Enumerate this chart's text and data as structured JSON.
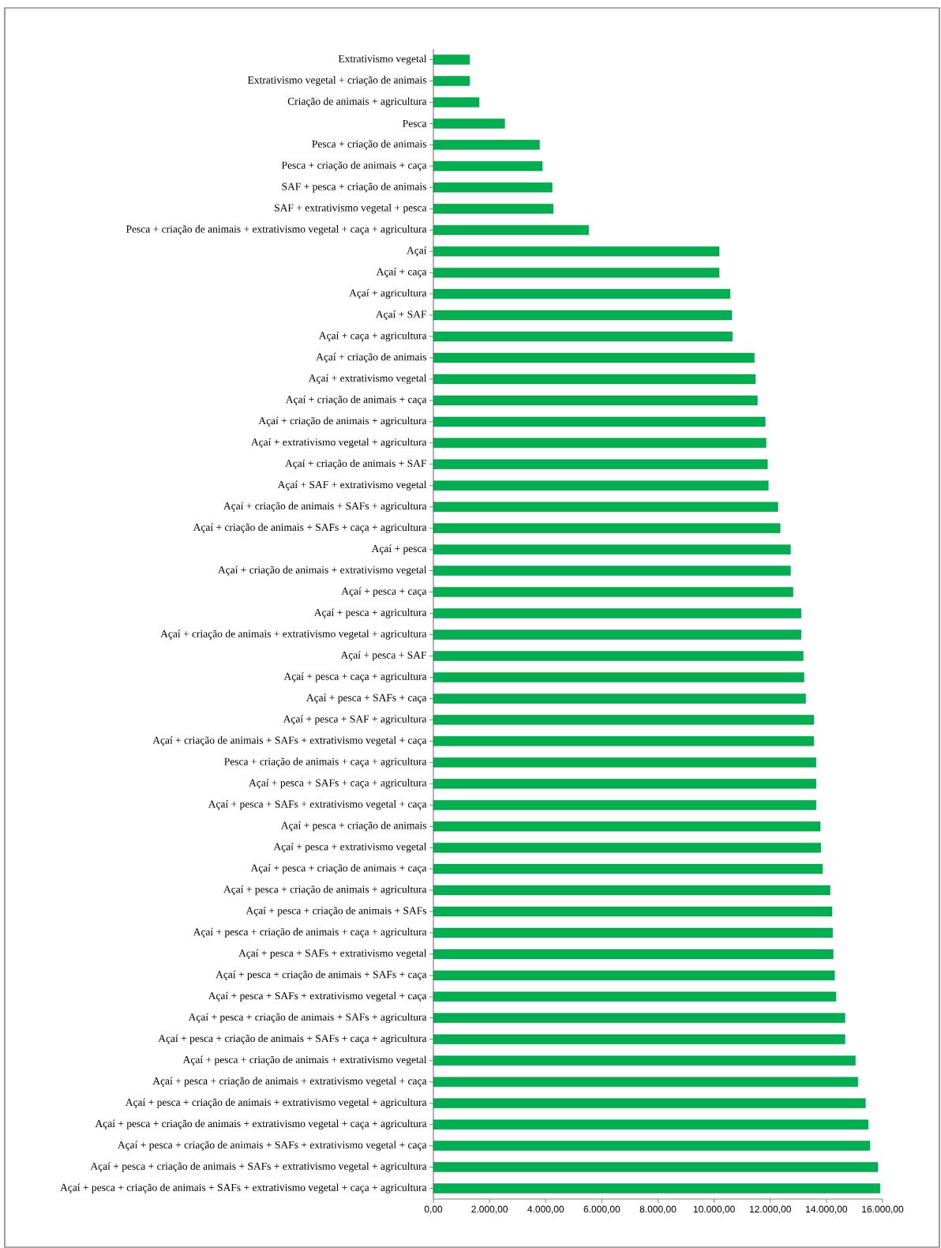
{
  "chart_data": {
    "type": "bar",
    "orientation": "horizontal",
    "color": "#00b050",
    "categories": [
      "Extrativismo vegetal",
      "Extrativismo vegetal + criação de animais",
      "Criação de animais + agricultura",
      "Pesca",
      "Pesca + criação de animais",
      "Pesca + criação de animais + caça",
      "SAF + pesca + criação de animais",
      "SAF + extrativismo vegetal + pesca",
      "Pesca + criação de animais + extrativismo vegetal + caça + agricultura",
      "Açaí",
      "Açaí + caça",
      "Açaí + agricultura",
      "Açaí + SAF",
      "Açaí + caça + agricultura",
      "Açaí + criação de animais",
      "Açaí + extrativismo vegetal",
      "Açaí + criação de animais + caça",
      "Açaí + criação de animais + agricultura",
      "Açaí + extrativismo vegetal + agricultura",
      "Açaí + criação de animais + SAF",
      "Açaí + SAF + extrativismo vegetal",
      "Açaí + criação de animais + SAFs + agricultura",
      "Açaí + criação de animais + SAFs + caça + agricultura",
      "Açaí + pesca",
      "Açaí + criação de animais + extrativismo vegetal",
      "Açaí + pesca + caça",
      "Açaí + pesca + agricultura",
      "Açaí + criação de animais + extrativismo vegetal + agricultura",
      "Açaí + pesca + SAF",
      "Açaí + pesca + caça + agricultura",
      "Açaí + pesca + SAFs + caça",
      "Açaí + pesca + SAF + agricultura",
      "Açaí + criação de animais + SAFs + extrativismo vegetal + caça",
      "Pesca + criação de animais + caça + agricultura",
      "Açaí + pesca + SAFs + caça + agricultura",
      "Açaí + pesca + SAFs + extrativismo vegetal + caça",
      "Açaí + pesca + criação de animais",
      "Açaí + pesca + extrativismo vegetal",
      "Açaí + pesca + criação de animais + caça",
      "Açaí + pesca + criação de animais + agricultura",
      "Açaí + pesca + criação de animais + SAFs",
      "Açaí + pesca + criação de animais + caça + agricultura",
      "Açaí + pesca + SAFs + extrativismo vegetal",
      "Açaí + pesca + criação de animais + SAFs + caça",
      "Açaí + pesca + SAFs + extrativismo vegetal + caça",
      "Açaí + pesca + criação de animais + SAFs + agricultura",
      "Açaí + pesca + criação de animais + SAFs + caça + agricultura",
      "Açaí + pesca + criação de animais + extrativismo vegetal",
      "Açaí + pesca + criação de animais + extrativismo vegetal + caça",
      "Açaí + pesca + criação de animais + extrativismo vegetal + agricultura",
      "Açaí + pesca + criação de animais + extrativismo vegetal + caça + agricultura",
      "Açaí + pesca + criação de animais + SAFs + extrativismo vegetal + caça",
      "Açaí + pesca + criação de animais + SAFs + extrativismo vegetal + agricultura",
      "Açaí + pesca + criação de animais + SAFs + extrativismo vegetal + caça + agricultura"
    ],
    "values": [
      1290,
      1290,
      1630,
      2540,
      3780,
      3880,
      4230,
      4270,
      5530,
      10180,
      10180,
      10570,
      10630,
      10650,
      11430,
      11470,
      11540,
      11820,
      11850,
      11900,
      11930,
      12270,
      12350,
      12720,
      12720,
      12810,
      13100,
      13100,
      13170,
      13200,
      13260,
      13550,
      13550,
      13630,
      13630,
      13630,
      13780,
      13800,
      13860,
      14130,
      14200,
      14220,
      14240,
      14290,
      14340,
      14660,
      14660,
      15030,
      15120,
      15390,
      15490,
      15550,
      15830,
      15910
    ],
    "xlim": [
      0,
      16000
    ],
    "xticks": [
      {
        "value": 0,
        "label": "0,00"
      },
      {
        "value": 2000,
        "label": "2.000,00"
      },
      {
        "value": 4000,
        "label": "4.000,00"
      },
      {
        "value": 6000,
        "label": "6.000,00"
      },
      {
        "value": 8000,
        "label": "8.000,00"
      },
      {
        "value": 10000,
        "label": "10.000,00"
      },
      {
        "value": 12000,
        "label": "12.000,00"
      },
      {
        "value": 14000,
        "label": "14.000,00"
      },
      {
        "value": 16000,
        "label": "16.000,00"
      }
    ]
  }
}
